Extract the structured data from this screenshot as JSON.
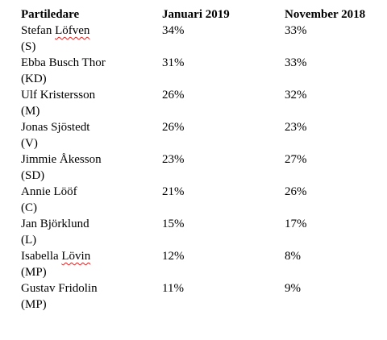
{
  "table": {
    "headers": [
      "Partiledare",
      "Januari 2019",
      "November 2018"
    ],
    "rows": [
      {
        "name": "Stefan Löfven",
        "party": "(S)",
        "jan2019": "34%",
        "nov2018": "33%"
      },
      {
        "name": "Ebba Busch Thor",
        "party": "(KD)",
        "jan2019": "31%",
        "nov2018": "33%"
      },
      {
        "name": "Ulf Kristersson",
        "party": "(M)",
        "jan2019": "26%",
        "nov2018": "32%"
      },
      {
        "name": "Jonas Sjöstedt",
        "party": "(V)",
        "jan2019": "26%",
        "nov2018": "23%"
      },
      {
        "name": "Jimmie Åkesson",
        "party": "(SD)",
        "jan2019": "23%",
        "nov2018": "27%"
      },
      {
        "name": "Annie Lööf",
        "party": "(C)",
        "jan2019": "21%",
        "nov2018": "26%"
      },
      {
        "name": "Jan Björklund",
        "party": "(L)",
        "jan2019": "15%",
        "nov2018": "17%"
      },
      {
        "name": "Isabella Lövin",
        "party": "(MP)",
        "jan2019": "12%",
        "nov2018": "8%"
      },
      {
        "name": "Gustav Fridolin",
        "party": "(MP)",
        "jan2019": "11%",
        "nov2018": "9%"
      }
    ]
  }
}
